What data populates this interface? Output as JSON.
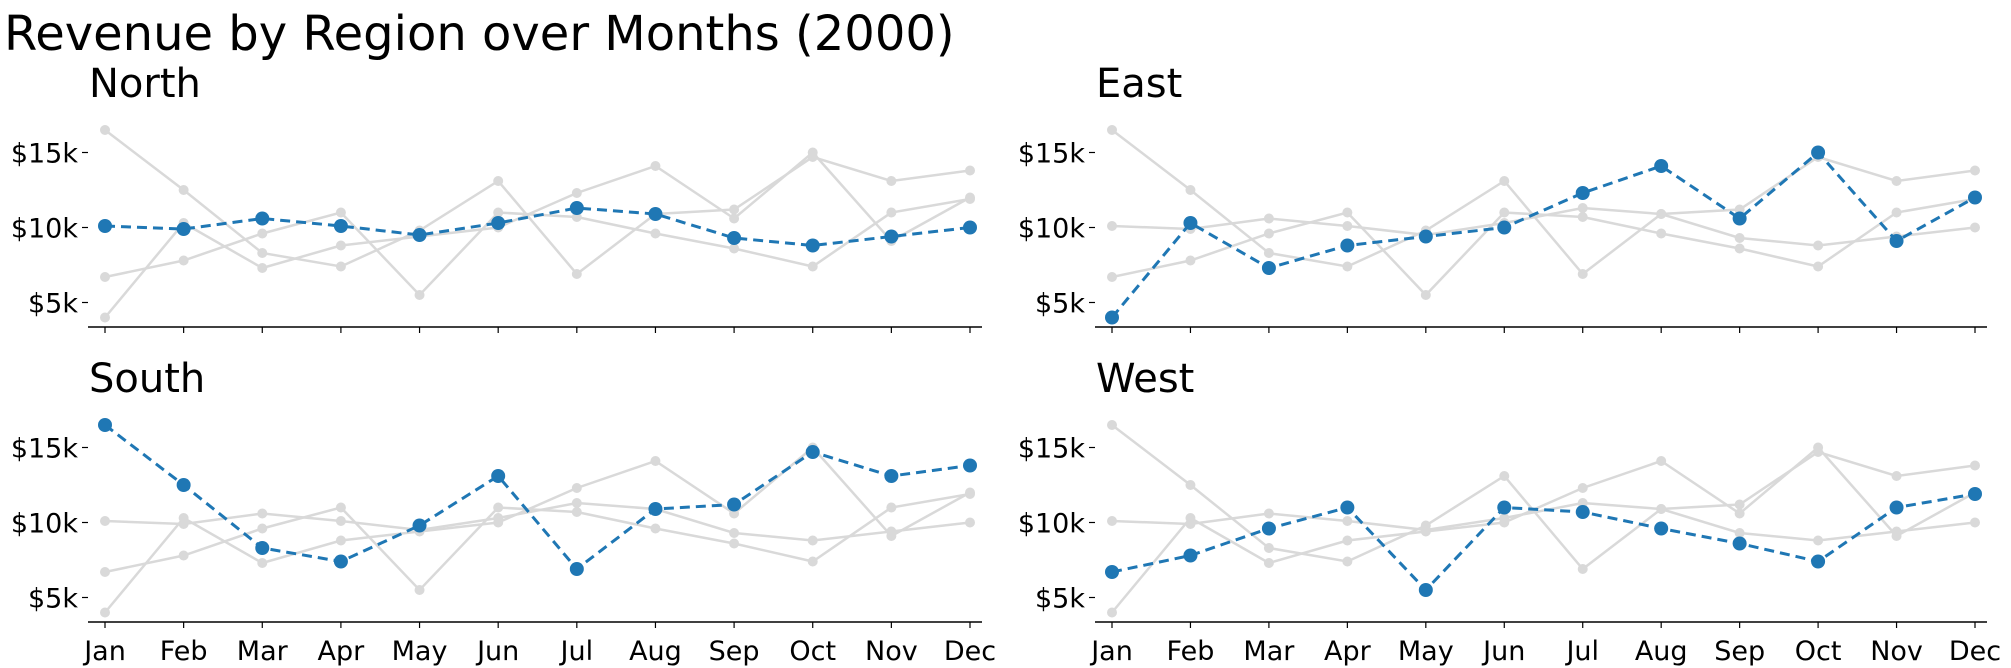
{
  "title": "Revenue by Region over Months (2000)",
  "chart_data": {
    "type": "line",
    "title": "Revenue by Region over Months (2000)",
    "categories": [
      "Jan",
      "Feb",
      "Mar",
      "Apr",
      "May",
      "Jun",
      "Jul",
      "Aug",
      "Sep",
      "Oct",
      "Nov",
      "Dec"
    ],
    "ylim": [
      3500,
      17500
    ],
    "y_ticks": [
      5000,
      10000,
      15000
    ],
    "y_tick_labels": [
      "$5k",
      "$10k",
      "$15k"
    ],
    "grid": false,
    "layout": "2x2 small multiples; highlighted series drawn blue dashed with markers, other series grey",
    "colors": {
      "highlight": "#1f77b4",
      "context": "#d9d9d9"
    },
    "series": [
      {
        "name": "North",
        "values": [
          10100,
          9900,
          10600,
          10100,
          9500,
          10300,
          11300,
          10900,
          9300,
          8800,
          9400,
          10000
        ]
      },
      {
        "name": "East",
        "values": [
          4000,
          10300,
          7300,
          8800,
          9400,
          10000,
          12300,
          14100,
          10600,
          15000,
          9100,
          12000
        ]
      },
      {
        "name": "South",
        "values": [
          16500,
          12500,
          8300,
          7400,
          9800,
          13100,
          6900,
          10900,
          11200,
          14700,
          13100,
          13800
        ]
      },
      {
        "name": "West",
        "values": [
          6700,
          7800,
          9600,
          11000,
          5500,
          11000,
          10700,
          9600,
          8600,
          7400,
          11000,
          11900
        ]
      }
    ]
  }
}
